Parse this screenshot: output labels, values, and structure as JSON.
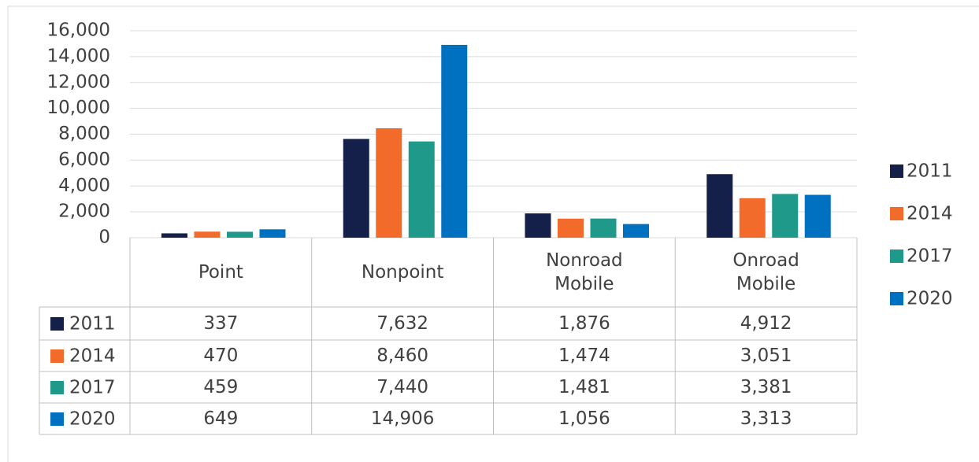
{
  "chart_data": {
    "type": "bar",
    "categories": [
      "Point",
      "Nonpoint",
      "Nonroad Mobile",
      "Onroad Mobile"
    ],
    "series": [
      {
        "name": "2011",
        "color": "#14204a",
        "values": [
          337,
          7632,
          1876,
          4912
        ],
        "value_labels": [
          "337",
          "7,632",
          "1,876",
          "4,912"
        ]
      },
      {
        "name": "2014",
        "color": "#f26b2b",
        "values": [
          470,
          8460,
          1474,
          3051
        ],
        "value_labels": [
          "470",
          "8,460",
          "1,474",
          "3,051"
        ]
      },
      {
        "name": "2017",
        "color": "#1f9a8a",
        "values": [
          459,
          7440,
          1481,
          3381
        ],
        "value_labels": [
          "459",
          "7,440",
          "1,481",
          "3,381"
        ]
      },
      {
        "name": "2020",
        "color": "#0070c0",
        "values": [
          649,
          14906,
          1056,
          3313
        ],
        "value_labels": [
          "649",
          "14,906",
          "1,056",
          "3,313"
        ]
      }
    ],
    "ylim": [
      0,
      16000
    ],
    "yticks": [
      0,
      {
        "value": 2000,
        "label": "2,000"
      },
      {
        "value": 4000,
        "label": "4,000"
      },
      {
        "value": 6000,
        "label": "6,000"
      },
      {
        "value": 8000,
        "label": "8,000"
      },
      {
        "value": 10000,
        "label": "10,000"
      },
      {
        "value": 12000,
        "label": "12,000"
      },
      {
        "value": 14000,
        "label": "14,000"
      },
      {
        "value": 16000,
        "label": "16,000"
      }
    ],
    "grid": true,
    "legend": "right"
  }
}
